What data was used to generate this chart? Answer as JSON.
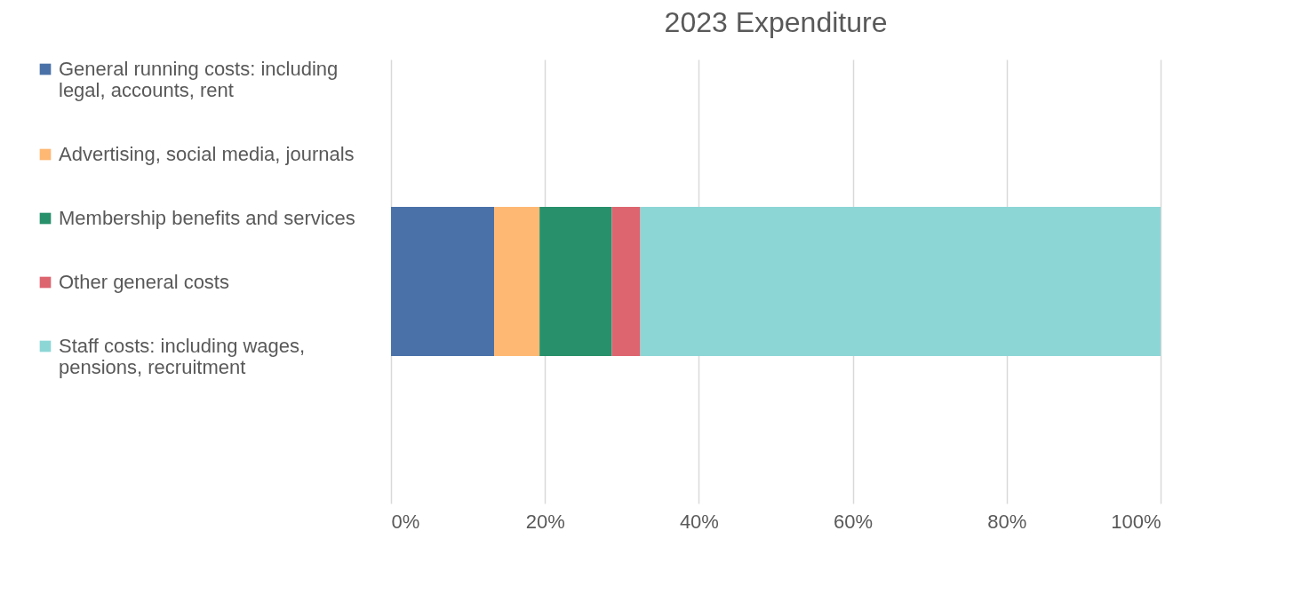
{
  "chart_data": {
    "type": "bar",
    "title": "2023 Expenditure",
    "orientation": "horizontal",
    "stacked": true,
    "categories": [
      null
    ],
    "series": [
      {
        "name": "General running costs: including legal, accounts, rent",
        "color": "#4a72a8",
        "values": [
          13.4
        ]
      },
      {
        "name": "Advertising, social media, journals",
        "color": "#feb874",
        "values": [
          5.9
        ]
      },
      {
        "name": "Membership benefits and services",
        "color": "#28906a",
        "values": [
          9.4
        ]
      },
      {
        "name": "Other general costs",
        "color": "#dd6570",
        "values": [
          3.7
        ]
      },
      {
        "name": "Staff costs: including wages, pensions, recruitment",
        "color": "#8dd6d6",
        "values": [
          67.6
        ]
      }
    ],
    "xlim": [
      0,
      100
    ],
    "xticks": [
      {
        "value": 0,
        "label": "0%"
      },
      {
        "value": 20,
        "label": "20%"
      },
      {
        "value": 40,
        "label": "40%"
      },
      {
        "value": 60,
        "label": "60%"
      },
      {
        "value": 80,
        "label": "80%"
      },
      {
        "value": 100,
        "label": "100%"
      }
    ],
    "grid": "x",
    "legend": "left",
    "tick_labels": "x"
  }
}
